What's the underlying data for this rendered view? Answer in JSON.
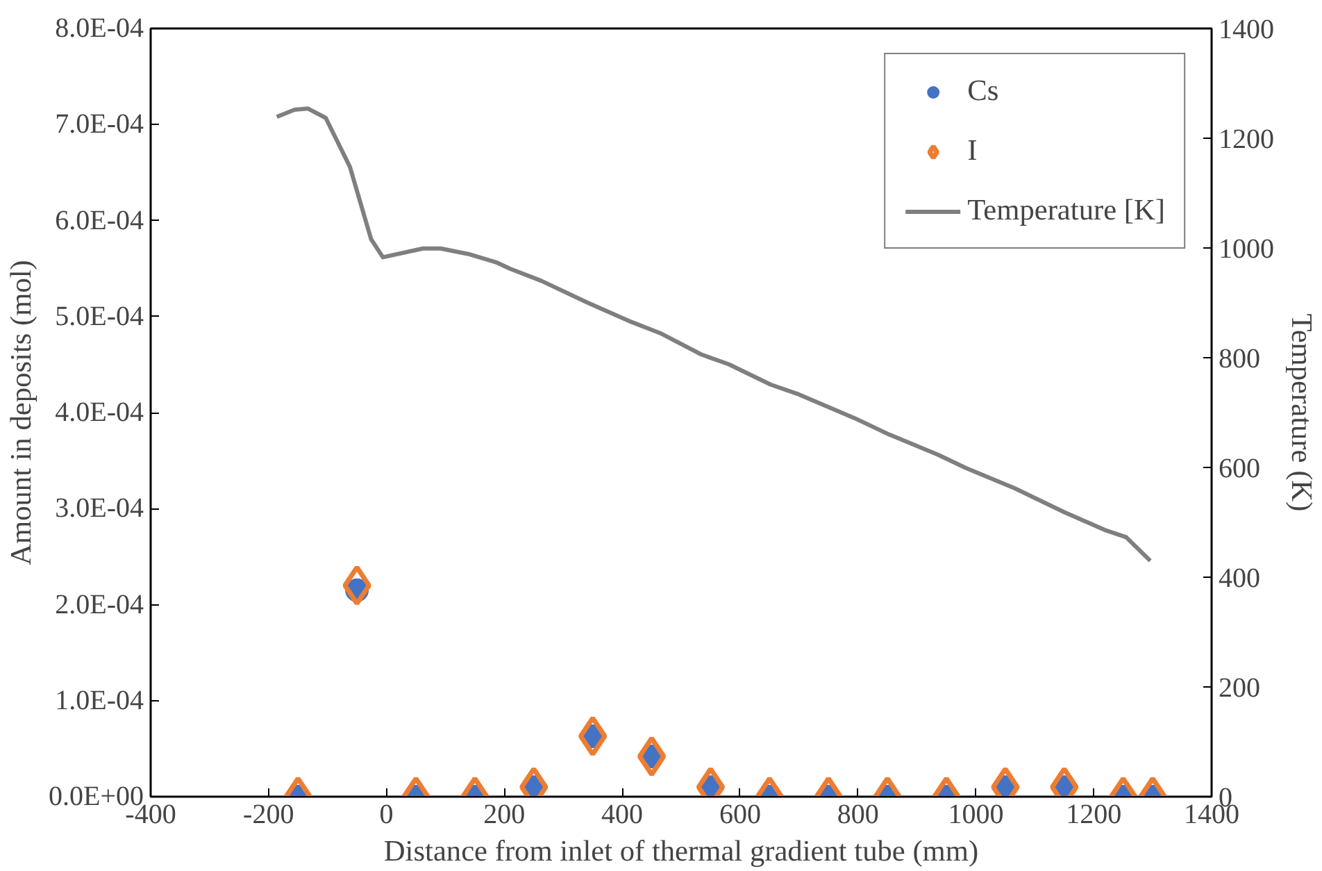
{
  "chart_data": {
    "type": "scatter",
    "xlabel": "Distance from inlet of thermal gradient tube (mm)",
    "ylabel": "Amount in deposits (mol)",
    "y2label": "Temperature (K)",
    "xlim": [
      -400,
      1400
    ],
    "xticks": [
      -400,
      -200,
      0,
      200,
      400,
      600,
      800,
      1000,
      1200,
      1400
    ],
    "ylim": [
      0,
      0.0008
    ],
    "yticks": [
      {
        "value": 0,
        "label": "0.0E+00"
      },
      {
        "value": 0.0001,
        "label": "1.0E-04"
      },
      {
        "value": 0.0002,
        "label": "2.0E-04"
      },
      {
        "value": 0.0003,
        "label": "3.0E-04"
      },
      {
        "value": 0.0004,
        "label": "4.0E-04"
      },
      {
        "value": 0.0005,
        "label": "5.0E-04"
      },
      {
        "value": 0.0006,
        "label": "6.0E-04"
      },
      {
        "value": 0.0007,
        "label": "7.0E-04"
      },
      {
        "value": 0.0008,
        "label": "8.0E-04"
      }
    ],
    "y2lim": [
      0,
      1400
    ],
    "y2ticks": [
      0,
      200,
      400,
      600,
      800,
      1000,
      1200,
      1400
    ],
    "grid": false,
    "legend": "top right",
    "series": [
      {
        "name": "Cs",
        "marker": "circle",
        "color": "#4472c4",
        "x": [
          -150,
          -50,
          50,
          150,
          250,
          350,
          450,
          550,
          650,
          750,
          850,
          950,
          1050,
          1150,
          1250,
          1300
        ],
        "values": [
          0,
          0.000215,
          0,
          0,
          1e-05,
          6.3e-05,
          4.2e-05,
          1e-05,
          0,
          0,
          0,
          0,
          1e-05,
          1e-05,
          0,
          0
        ]
      },
      {
        "name": "I",
        "marker": "diamond",
        "color": "#ed7d31",
        "x": [
          -150,
          -50,
          50,
          150,
          250,
          350,
          450,
          550,
          650,
          750,
          850,
          950,
          1050,
          1150,
          1250,
          1300
        ],
        "values": [
          0,
          0.00022,
          0,
          0,
          1e-05,
          6.3e-05,
          4.2e-05,
          1e-05,
          0,
          0,
          0,
          0,
          1e-05,
          1e-05,
          0,
          0
        ]
      },
      {
        "name": "Temperature [K]",
        "type": "line",
        "axis": "y2",
        "line_style": "solid",
        "color": "#7f7f7f",
        "x": [
          -186,
          -156,
          -133,
          -103,
          -62,
          -26,
          -6,
          62,
          92,
          139,
          186,
          210,
          263,
          340,
          416,
          464,
          534,
          581,
          652,
          700,
          794,
          853,
          936,
          983,
          1066,
          1149,
          1219,
          1255,
          1296
        ],
        "values": [
          1239,
          1252,
          1254,
          1237,
          1148,
          1016,
          983,
          999,
          999,
          989,
          974,
          962,
          940,
          901,
          865,
          845,
          806,
          788,
          751,
          733,
          690,
          660,
          623,
          599,
          562,
          519,
          486,
          473,
          430
        ]
      }
    ]
  }
}
